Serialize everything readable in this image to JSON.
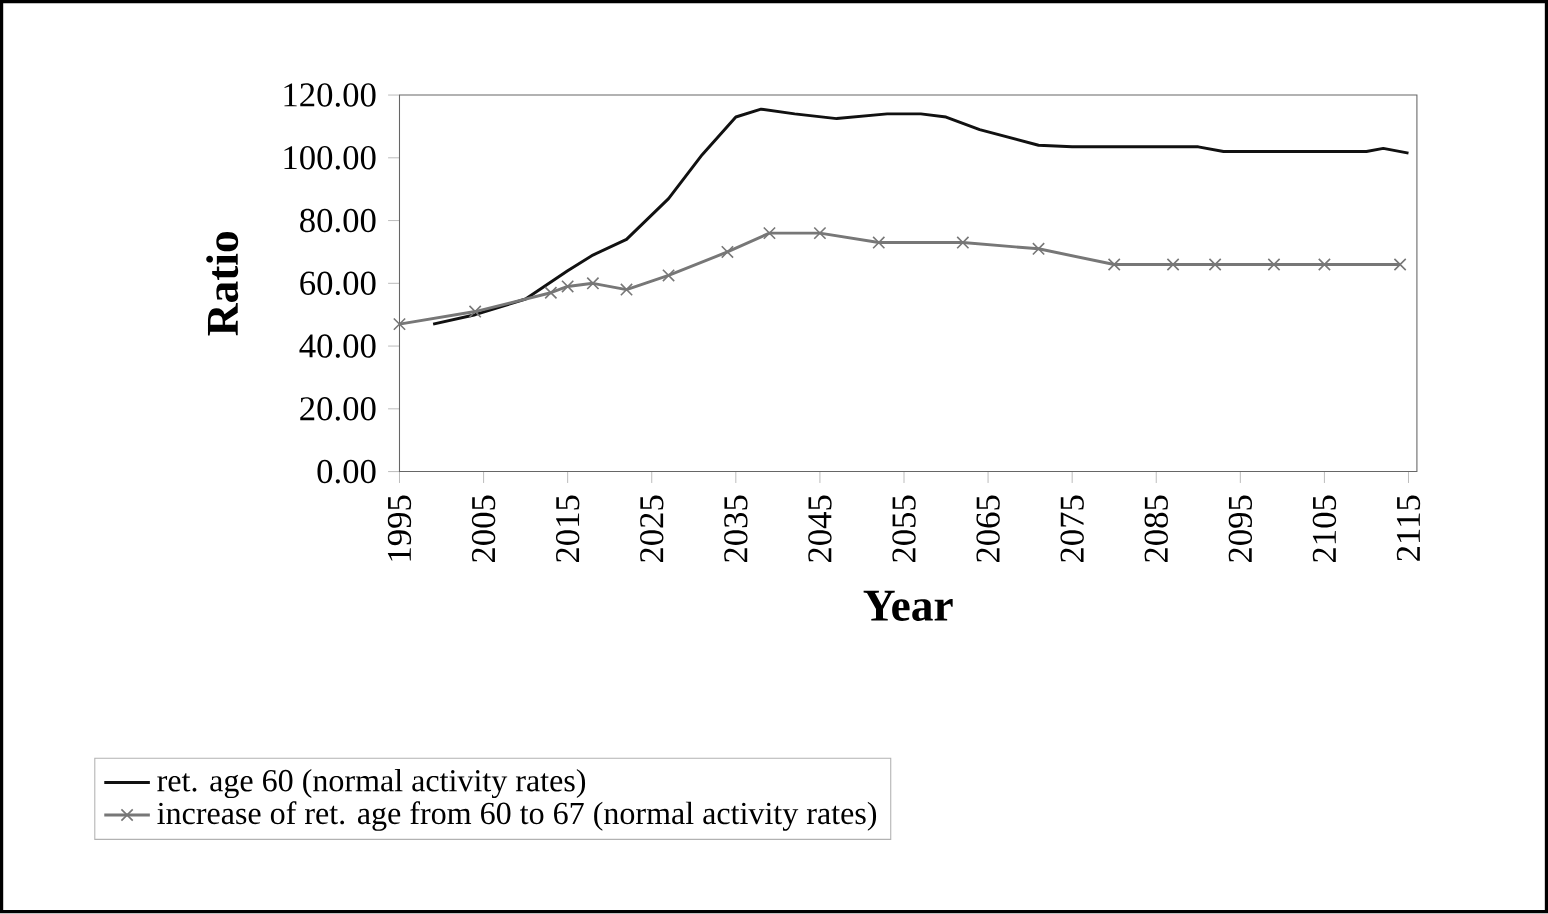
{
  "chart_data": {
    "type": "line",
    "xlabel": "Year",
    "ylabel": "Ratio",
    "xlim": [
      1995,
      2116
    ],
    "ylim": [
      0,
      120
    ],
    "xticks": [
      1995,
      2005,
      2015,
      2025,
      2035,
      2045,
      2055,
      2065,
      2075,
      2085,
      2095,
      2105,
      2115
    ],
    "yticks": [
      {
        "value": 0,
        "label": "0.00"
      },
      {
        "value": 20,
        "label": "20.00"
      },
      {
        "value": 40,
        "label": "40.00"
      },
      {
        "value": 60,
        "label": "60.00"
      },
      {
        "value": 80,
        "label": "80.00"
      },
      {
        "value": 100,
        "label": "100.00"
      },
      {
        "value": 120,
        "label": "120.00"
      }
    ],
    "grid": false,
    "legend": "bottom",
    "line_style": "solid",
    "series": [
      {
        "name": "ret. age 60 (normal activity rates)",
        "color": "#111111",
        "marker": "none",
        "x": [
          1999,
          2004,
          2010,
          2015,
          2018,
          2022,
          2027,
          2031,
          2035,
          2038,
          2042,
          2047,
          2053,
          2057,
          2060,
          2064,
          2071,
          2075,
          2090,
          2093,
          2110,
          2112,
          2115
        ],
        "values": [
          47,
          50,
          55,
          64,
          69,
          74,
          87,
          101,
          113,
          115.5,
          114,
          112.5,
          114,
          114,
          113,
          109,
          104,
          103.5,
          103.5,
          102,
          102,
          103,
          101.5
        ]
      },
      {
        "name": "increase of ret. age from 60 to 67 (normal activity rates)",
        "color": "#777777",
        "marker": "cross",
        "x": [
          1995,
          2004,
          2013,
          2015,
          2018,
          2022,
          2027,
          2034,
          2039,
          2045,
          2052,
          2062,
          2071,
          2080,
          2087,
          2092,
          2099,
          2105,
          2114
        ],
        "values": [
          47,
          51,
          57,
          59,
          60,
          58,
          62.5,
          70,
          76,
          76,
          73,
          73,
          71,
          66,
          66,
          66,
          66,
          66,
          66
        ]
      }
    ]
  }
}
